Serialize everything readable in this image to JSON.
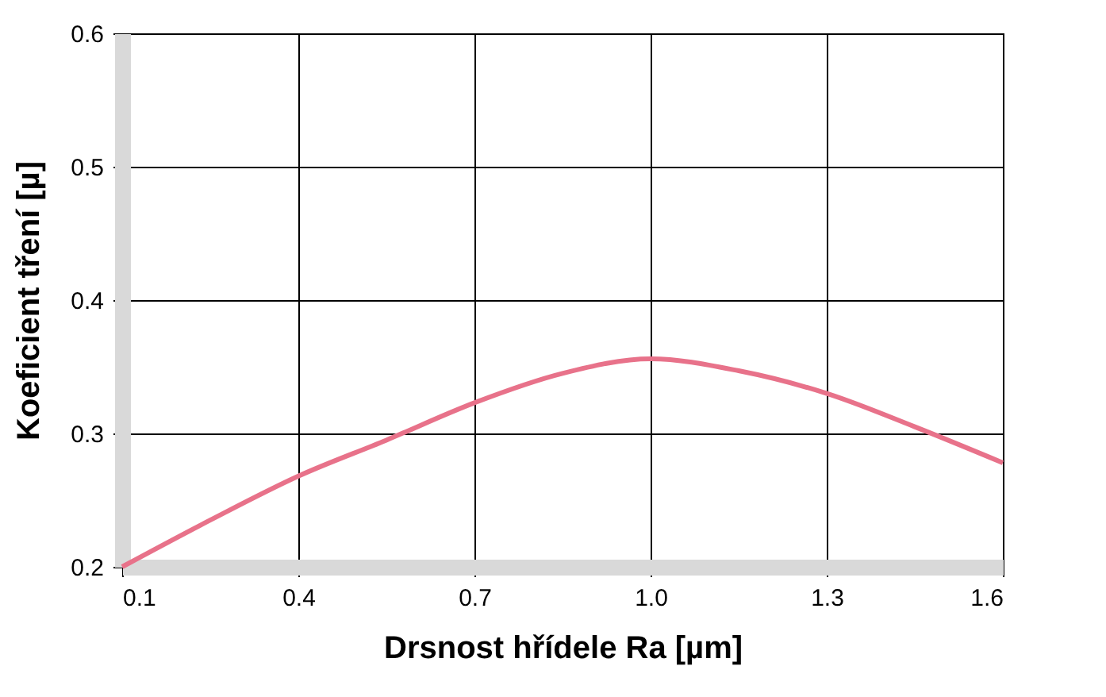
{
  "chart_data": {
    "type": "line",
    "xlabel": "Drsnost hřídele Ra [µm]",
    "ylabel": "Koeficient tření [µ]",
    "x": [
      0.1,
      0.25,
      0.4,
      0.55,
      0.7,
      0.85,
      1.0,
      1.15,
      1.3,
      1.45,
      1.6
    ],
    "series": [
      {
        "color": "#e8728a",
        "values": [
          0.2,
          0.235,
          0.268,
          0.295,
          0.323,
          0.345,
          0.356,
          0.347,
          0.33,
          0.305,
          0.278
        ]
      }
    ],
    "xlim": [
      0.1,
      1.6
    ],
    "xticks": [
      0.1,
      0.4,
      0.7,
      {
        "value": 1.0,
        "label": "1.0"
      },
      1.3,
      1.6
    ],
    "ylim": [
      0.2,
      0.6
    ],
    "yticks": [
      0.2,
      0.3,
      0.4,
      0.5,
      0.6
    ],
    "grid": true,
    "marker": "none",
    "line_style": "solid"
  }
}
